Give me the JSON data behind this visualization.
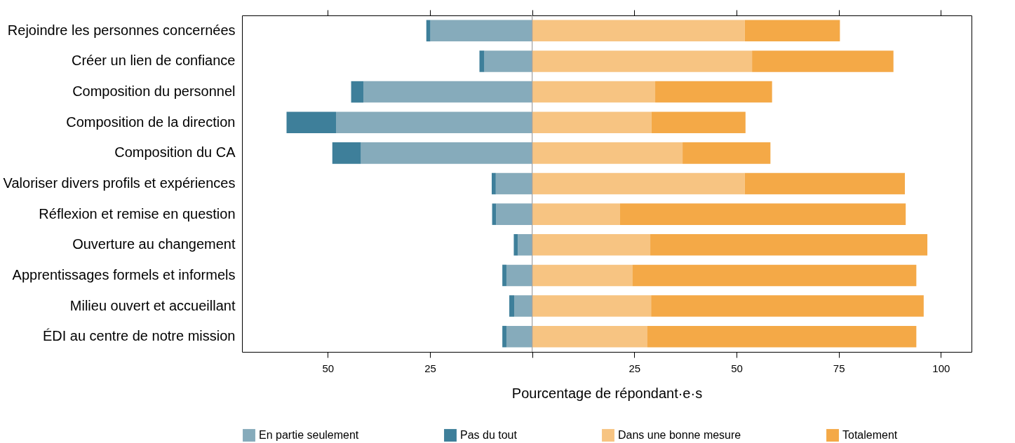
{
  "chart_data": {
    "type": "bar",
    "orientation": "horizontal",
    "stacked": true,
    "xlabel": "Pourcentage de répondant·e·s",
    "categories": [
      "Rejoindre les personnes concernées",
      "Créer un lien de confiance",
      "Composition du personnel",
      "Composition de la direction",
      "Composition du CA",
      "Valoriser divers profils et expériences",
      "Réflexion et remise en question",
      "Ouverture au changement",
      "Apprentissages formels et informels",
      "Milieu ouvert et accueillant",
      "ÉDI au centre de notre mission"
    ],
    "series": [
      {
        "name": "En partie seulement",
        "color": "#86abbb",
        "values": [
          -24.9,
          -11.7,
          -41.3,
          -48,
          -41.9,
          -8.9,
          -8.8,
          -3.5,
          -6.3,
          -4.4,
          -6.3
        ]
      },
      {
        "name": "Pas du tout",
        "color": "#3e7f9a",
        "values": [
          -1,
          -1.2,
          -3,
          -12.1,
          -7,
          -1,
          -1,
          -1,
          -1,
          -1.2,
          -1
        ]
      },
      {
        "name": "Dans une bonne mesure",
        "color": "#f7c482",
        "values": [
          52,
          53.8,
          30.1,
          29.2,
          36.8,
          52,
          21.5,
          28.9,
          24.5,
          29.1,
          28.2
        ]
      },
      {
        "name": "Totalement",
        "color": "#f4a947",
        "values": [
          23.3,
          34.6,
          28.6,
          23,
          21.5,
          39.2,
          69.9,
          67.8,
          69.5,
          66.7,
          65.8
        ]
      }
    ],
    "xlim": [
      -71,
      107.5
    ],
    "xticks": [
      {
        "value": -50,
        "label": "50"
      },
      {
        "value": -25,
        "label": "25"
      },
      {
        "value": 0,
        "label": null
      },
      25,
      50,
      75,
      100
    ],
    "ref_lines": [
      {
        "axis": "x",
        "value": 0,
        "color": "#a0a0a0"
      }
    ],
    "grid": false,
    "legend": "bottom"
  }
}
